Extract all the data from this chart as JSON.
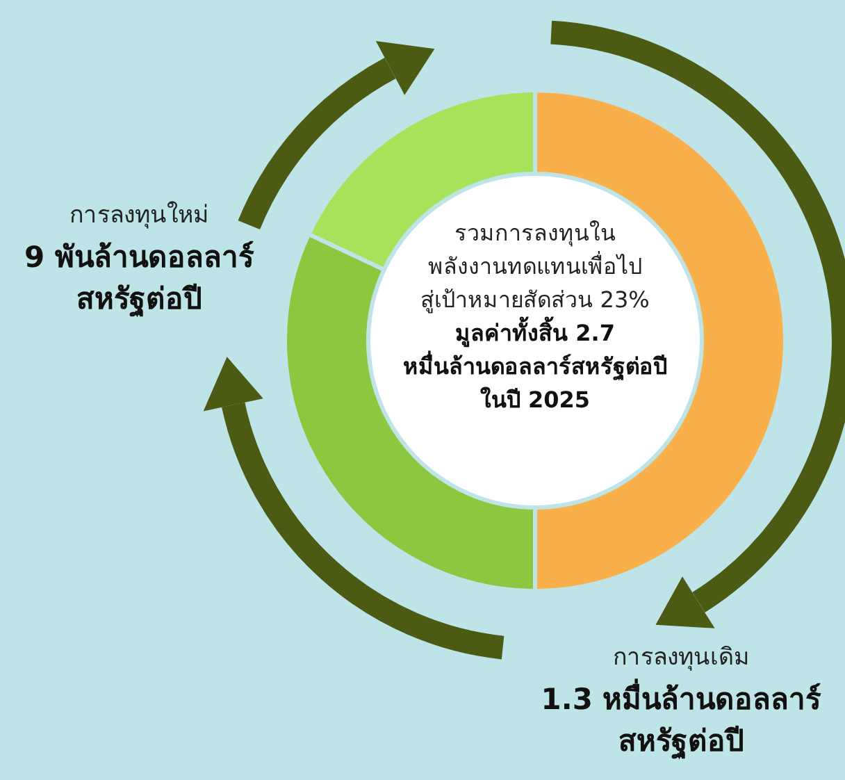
{
  "chart_data": {
    "type": "donut",
    "categories": [
      "การลงทุนเดิม",
      "การลงทุนใหม่",
      null
    ],
    "values": [
      50,
      32,
      18
    ],
    "colors": [
      "#f9b04a",
      "#8dc63f",
      "#a6e35a"
    ],
    "annotations": [
      "1.3 หมื่นล้านดอลลาร์\nสหรัฐต่อปี",
      "9 พันล้านดอลลาร์\nสหรัฐต่อปี"
    ],
    "title": "รวมการลงทุนใน\nพลังงานทดแทนเพื่อไป\nสู่เป้าหมายสัดส่วน 23%",
    "subtitle": "มูลค่าทั้งสิ้น 2.7\nหมื่นล้านดอลลาร์สหรัฐต่อปี\nในปี 2025"
  }
}
